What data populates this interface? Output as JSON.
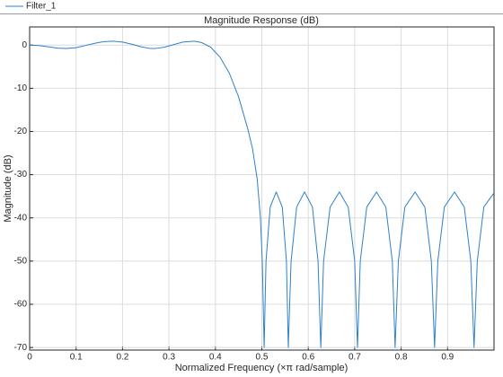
{
  "chart_data": {
    "type": "line",
    "legend_title": "Filter_1",
    "title": "Magnitude Response (dB)",
    "x_label": "Normalized Frequency (×π rad/sample)",
    "y_label": "Magnitude (dB)",
    "xlim": [
      0,
      1
    ],
    "ylim": [
      -70.6,
      4.2
    ],
    "xticks": [
      0,
      0.1,
      0.2,
      0.3,
      0.4,
      0.5,
      0.6,
      0.7,
      0.8,
      0.9
    ],
    "yticks": [
      0,
      -10,
      -20,
      -30,
      -40,
      -50,
      -60,
      -70
    ],
    "grid": true,
    "legend": "top-left",
    "series": [
      {
        "name": "Filter_1",
        "color": "#2f80c8",
        "x": [
          0,
          0.02,
          0.04,
          0.06,
          0.08,
          0.1,
          0.12,
          0.14,
          0.16,
          0.18,
          0.2,
          0.22,
          0.24,
          0.26,
          0.27,
          0.29,
          0.31,
          0.33,
          0.355,
          0.37,
          0.39,
          0.41,
          0.43,
          0.45,
          0.47,
          0.48,
          0.49,
          0.497,
          0.501,
          0.505,
          0.509,
          0.518,
          0.531,
          0.544,
          0.553,
          0.557,
          0.563,
          0.575,
          0.592,
          0.609,
          0.621,
          0.627,
          0.633,
          0.647,
          0.667,
          0.686,
          0.7,
          0.706,
          0.712,
          0.726,
          0.747,
          0.767,
          0.781,
          0.787,
          0.794,
          0.808,
          0.83,
          0.851,
          0.865,
          0.872,
          0.879,
          0.893,
          0.915,
          0.936,
          0.95,
          0.957,
          0.964,
          0.978,
          1
        ],
        "values": [
          0,
          -0.1,
          -0.4,
          -0.7,
          -0.8,
          -0.6,
          -0.1,
          0.4,
          0.8,
          0.9,
          0.7,
          0.2,
          -0.4,
          -0.8,
          -0.8,
          -0.5,
          0.1,
          0.7,
          0.9,
          0.6,
          -0.5,
          -2.8,
          -6.5,
          -12,
          -19.5,
          -24,
          -31,
          -40,
          -50,
          -70,
          -50,
          -37.5,
          -34,
          -37.5,
          -50,
          -70,
          -50,
          -37.5,
          -34,
          -37.5,
          -50,
          -70,
          -50,
          -37.5,
          -34,
          -37.5,
          -50,
          -70,
          -50,
          -37.5,
          -34,
          -37.5,
          -50,
          -70,
          -50,
          -37.5,
          -34,
          -37.5,
          -50,
          -70,
          -50,
          -37.5,
          -34,
          -37.5,
          -50,
          -70,
          -50,
          -37.5,
          -34.2
        ]
      }
    ]
  }
}
